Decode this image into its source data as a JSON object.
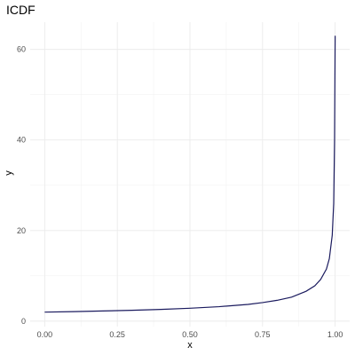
{
  "chart_data": {
    "type": "line",
    "title": "ICDF",
    "xlabel": "x",
    "ylabel": "y",
    "xlim": [
      -0.05,
      1.05
    ],
    "ylim": [
      -1.2,
      66
    ],
    "x_ticks": [
      0.0,
      0.25,
      0.5,
      0.75,
      1.0
    ],
    "x_tick_labels": [
      "0.00",
      "0.25",
      "0.50",
      "0.75",
      "1.00"
    ],
    "y_ticks": [
      0,
      20,
      40,
      60
    ],
    "y_tick_labels": [
      "0",
      "20",
      "40",
      "60"
    ],
    "grid": true,
    "legend": "none",
    "line_color": "#1a1a5e",
    "series": [
      {
        "x": [
          0.0,
          0.1,
          0.2,
          0.3,
          0.4,
          0.5,
          0.6,
          0.7,
          0.75,
          0.8,
          0.85,
          0.9,
          0.93,
          0.95,
          0.97,
          0.98,
          0.99,
          0.995,
          0.998,
          1.0
        ],
        "values": [
          2.0,
          2.1,
          2.25,
          2.4,
          2.6,
          2.85,
          3.2,
          3.7,
          4.1,
          4.6,
          5.3,
          6.6,
          7.8,
          9.2,
          11.5,
          13.8,
          19.0,
          26.0,
          40.0,
          63.0
        ]
      }
    ]
  }
}
